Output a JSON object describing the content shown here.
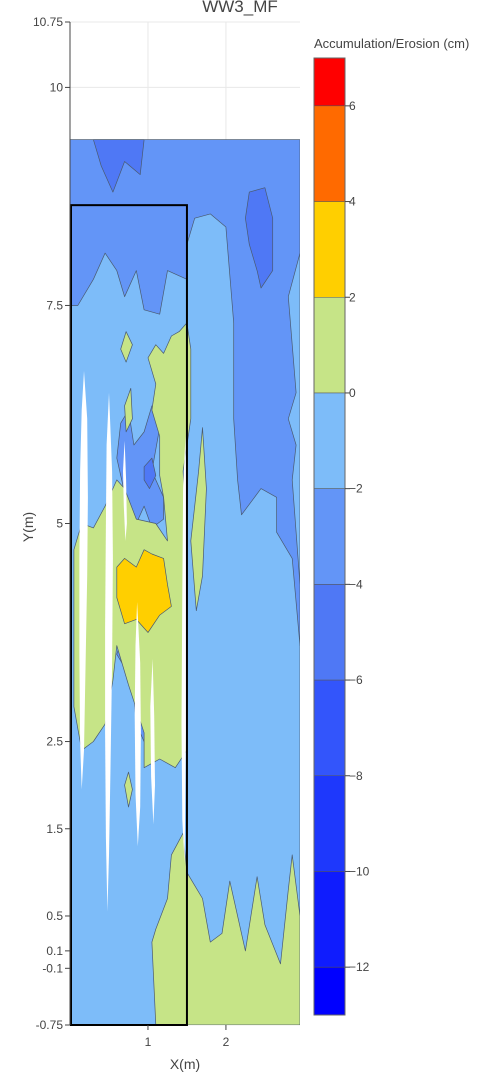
{
  "chart_data": {
    "type": "heatmap",
    "subtype": "filled-contour",
    "title": "WW3_MF",
    "xlabel": "X(m)",
    "ylabel": "Y(m)",
    "x_ticks": [
      {
        "value": 1,
        "label": "1"
      },
      {
        "value": 2,
        "label": "2"
      }
    ],
    "y_ticks": [
      {
        "value": 10.75,
        "label": "10.75"
      },
      {
        "value": 10,
        "label": "10"
      },
      {
        "value": 7.5,
        "label": "7.5"
      },
      {
        "value": 5,
        "label": "5"
      },
      {
        "value": 2.5,
        "label": "2.5"
      },
      {
        "value": 1.5,
        "label": "1.5"
      },
      {
        "value": 0.5,
        "label": "0.5"
      },
      {
        "value": 0.1,
        "label": "0.1"
      },
      {
        "value": -0.1,
        "label": "-0.1"
      },
      {
        "value": -0.75,
        "label": "-0.75"
      }
    ],
    "xlim": [
      0,
      2.95
    ],
    "ylim": [
      -0.75,
      10.75
    ],
    "data_extent": {
      "x": [
        0,
        2.95
      ],
      "y": [
        -0.75,
        9.4
      ]
    },
    "outline_box": {
      "x": [
        0,
        1.5
      ],
      "y": [
        -0.75,
        8.65
      ]
    },
    "colorbar": {
      "title": "Accumulation/Erosion (cm)",
      "range": [
        -13,
        7
      ],
      "ticks": [
        6,
        4,
        2,
        0,
        -2,
        -4,
        -6,
        -8,
        -10,
        -12
      ],
      "tick_labels": [
        "6",
        "4",
        "2",
        "0",
        "−2",
        "−4",
        "−6",
        "−8",
        "−10",
        "−12"
      ],
      "bands": [
        {
          "from": -13,
          "to": -12,
          "color": "#0000ff"
        },
        {
          "from": -12,
          "to": -10,
          "color": "#0f1cfe"
        },
        {
          "from": -10,
          "to": -8,
          "color": "#1e38fc"
        },
        {
          "from": -8,
          "to": -6,
          "color": "#3355fb"
        },
        {
          "from": -6,
          "to": -4,
          "color": "#4f78f5"
        },
        {
          "from": -4,
          "to": -2,
          "color": "#6395f7"
        },
        {
          "from": -2,
          "to": 0,
          "color": "#7dbcf9"
        },
        {
          "from": 0,
          "to": 2,
          "color": "#c6e487"
        },
        {
          "from": 2,
          "to": 4,
          "color": "#ffcf00"
        },
        {
          "from": 4,
          "to": 6,
          "color": "#ff6a00"
        },
        {
          "from": 6,
          "to": 7,
          "color": "#ff0000"
        }
      ]
    },
    "contour_regions": [
      {
        "level": "-2 to 0",
        "color": "#7dbcf9",
        "polygons": [
          [
            [
              0,
              -0.75
            ],
            [
              2.95,
              -0.75
            ],
            [
              2.95,
              9.4
            ],
            [
              0,
              9.4
            ]
          ]
        ]
      },
      {
        "level": "-4 to -2",
        "color": "#6395f7",
        "polygons": [
          [
            [
              0,
              9.4
            ],
            [
              2.95,
              9.4
            ],
            [
              2.95,
              8.1
            ],
            [
              2.8,
              7.6
            ],
            [
              2.9,
              6.5
            ],
            [
              2.8,
              6.2
            ],
            [
              2.9,
              5.9
            ],
            [
              2.85,
              5.5
            ],
            [
              2.9,
              4.9
            ],
            [
              2.95,
              4.3
            ],
            [
              2.95,
              3.6
            ],
            [
              2.85,
              4.6
            ],
            [
              2.65,
              4.9
            ],
            [
              2.65,
              5.3
            ],
            [
              2.45,
              5.4
            ],
            [
              2.2,
              5.1
            ],
            [
              2.15,
              5.5
            ],
            [
              2.1,
              6.2
            ],
            [
              2.1,
              7.3
            ],
            [
              2.0,
              8.4
            ],
            [
              1.8,
              8.55
            ],
            [
              1.6,
              8.5
            ],
            [
              1.5,
              8.2
            ],
            [
              1.5,
              7.8
            ],
            [
              1.25,
              7.9
            ],
            [
              1.15,
              7.4
            ],
            [
              0.95,
              7.45
            ],
            [
              0.85,
              7.9
            ],
            [
              0.7,
              7.6
            ],
            [
              0.6,
              7.9
            ],
            [
              0.45,
              8.1
            ],
            [
              0.3,
              7.8
            ],
            [
              0.1,
              7.5
            ],
            [
              0,
              7.5
            ]
          ],
          [
            [
              0.65,
              6.15
            ],
            [
              0.75,
              6.3
            ],
            [
              0.82,
              5.9
            ],
            [
              0.95,
              6.05
            ],
            [
              1.05,
              6.35
            ],
            [
              1.15,
              6.1
            ],
            [
              1.05,
              5.6
            ],
            [
              1.2,
              5.3
            ],
            [
              1.2,
              5.05
            ],
            [
              1.05,
              4.95
            ],
            [
              0.95,
              5.2
            ],
            [
              0.85,
              5.0
            ],
            [
              0.7,
              5.35
            ],
            [
              0.6,
              5.75
            ]
          ],
          [
            [
              0.6,
              3.5
            ],
            [
              0.8,
              3.2
            ],
            [
              0.85,
              2.7
            ],
            [
              1.0,
              2.4
            ],
            [
              1.05,
              2.8
            ],
            [
              1.1,
              3.4
            ],
            [
              1.2,
              3.5
            ],
            [
              1.3,
              3.15
            ],
            [
              1.35,
              2.6
            ],
            [
              1.45,
              2.55
            ],
            [
              1.5,
              3.0
            ],
            [
              1.4,
              3.4
            ],
            [
              1.3,
              3.9
            ],
            [
              1.1,
              3.95
            ],
            [
              0.95,
              3.75
            ],
            [
              0.85,
              4.05
            ],
            [
              0.7,
              3.8
            ]
          ]
        ]
      },
      {
        "level": "-6 to -4",
        "color": "#4f78f5",
        "polygons": [
          [
            [
              0.3,
              9.4
            ],
            [
              0.95,
              9.4
            ],
            [
              0.9,
              9.0
            ],
            [
              0.7,
              9.15
            ],
            [
              0.55,
              8.8
            ],
            [
              0.4,
              9.1
            ]
          ],
          [
            [
              2.3,
              8.8
            ],
            [
              2.5,
              8.85
            ],
            [
              2.6,
              8.5
            ],
            [
              2.6,
              7.9
            ],
            [
              2.45,
              7.7
            ],
            [
              2.4,
              7.9
            ],
            [
              2.3,
              8.2
            ],
            [
              2.25,
              8.5
            ]
          ],
          [
            [
              0.95,
              5.65
            ],
            [
              1.05,
              5.75
            ],
            [
              1.1,
              5.55
            ],
            [
              1.02,
              5.4
            ],
            [
              0.95,
              5.5
            ]
          ]
        ]
      },
      {
        "level": "0 to 2",
        "color": "#c6e487",
        "polygons": [
          [
            [
              1.4,
              7.2
            ],
            [
              1.5,
              7.3
            ],
            [
              1.55,
              7.0
            ],
            [
              1.55,
              6.2
            ],
            [
              1.45,
              5.6
            ],
            [
              1.5,
              4.8
            ],
            [
              1.45,
              4.0
            ],
            [
              1.5,
              3.2
            ],
            [
              1.5,
              2.4
            ],
            [
              1.35,
              2.2
            ],
            [
              1.15,
              2.3
            ],
            [
              0.95,
              2.2
            ],
            [
              0.95,
              2.6
            ],
            [
              0.75,
              3.15
            ],
            [
              0.6,
              3.6
            ],
            [
              0.55,
              3.2
            ],
            [
              0.45,
              2.7
            ],
            [
              0.3,
              2.5
            ],
            [
              0.15,
              2.4
            ],
            [
              0.05,
              2.9
            ],
            [
              0.05,
              3.8
            ],
            [
              0.05,
              4.7
            ],
            [
              0.15,
              5.0
            ],
            [
              0.3,
              4.95
            ],
            [
              0.45,
              5.2
            ],
            [
              0.6,
              5.5
            ],
            [
              0.7,
              5.4
            ],
            [
              0.85,
              5.05
            ],
            [
              1.1,
              5.0
            ],
            [
              1.25,
              4.8
            ],
            [
              1.2,
              5.3
            ],
            [
              1.15,
              5.55
            ],
            [
              1.15,
              6.0
            ],
            [
              1.05,
              6.3
            ],
            [
              1.1,
              6.6
            ],
            [
              1.0,
              6.9
            ],
            [
              1.1,
              7.05
            ],
            [
              1.2,
              6.95
            ],
            [
              1.3,
              7.15
            ]
          ],
          [
            [
              1.65,
              5.6
            ],
            [
              1.7,
              6.1
            ],
            [
              1.75,
              5.4
            ],
            [
              1.7,
              4.4
            ],
            [
              1.62,
              4.0
            ],
            [
              1.55,
              4.8
            ]
          ],
          [
            [
              1.5,
              0.1
            ],
            [
              1.5,
              -0.75
            ],
            [
              2.95,
              -0.75
            ],
            [
              2.95,
              0.5
            ],
            [
              2.85,
              1.2
            ],
            [
              2.8,
              0.8
            ],
            [
              2.7,
              -0.05
            ],
            [
              2.5,
              0.4
            ],
            [
              2.4,
              0.95
            ],
            [
              2.25,
              0.1
            ],
            [
              2.05,
              0.9
            ],
            [
              1.95,
              0.3
            ],
            [
              1.8,
              0.2
            ],
            [
              1.7,
              0.7
            ],
            [
              1.5,
              1.0
            ]
          ],
          [
            [
              1.1,
              -0.75
            ],
            [
              1.5,
              -0.75
            ],
            [
              1.5,
              1.0
            ],
            [
              1.45,
              1.45
            ],
            [
              1.3,
              1.2
            ],
            [
              1.25,
              0.7
            ],
            [
              1.1,
              0.35
            ],
            [
              1.05,
              0.2
            ]
          ],
          [
            [
              0.7,
              6.35
            ],
            [
              0.78,
              6.55
            ],
            [
              0.8,
              6.2
            ],
            [
              0.72,
              6.05
            ]
          ],
          [
            [
              0.65,
              7.0
            ],
            [
              0.72,
              7.2
            ],
            [
              0.8,
              7.05
            ],
            [
              0.72,
              6.85
            ]
          ],
          [
            [
              0.7,
              2.0
            ],
            [
              0.75,
              2.15
            ],
            [
              0.8,
              1.95
            ],
            [
              0.75,
              1.75
            ]
          ]
        ]
      },
      {
        "level": "2 to 4",
        "color": "#ffcf00",
        "polygons": [
          [
            [
              0.6,
              4.5
            ],
            [
              0.7,
              4.6
            ],
            [
              0.85,
              4.5
            ],
            [
              0.95,
              4.7
            ],
            [
              1.05,
              4.65
            ],
            [
              1.2,
              4.6
            ],
            [
              1.25,
              4.3
            ],
            [
              1.3,
              4.05
            ],
            [
              1.15,
              3.95
            ],
            [
              1.0,
              3.75
            ],
            [
              0.85,
              3.9
            ],
            [
              0.7,
              3.85
            ],
            [
              0.6,
              4.15
            ]
          ]
        ]
      }
    ],
    "white_gaps": [
      [
        [
          0.18,
          6.75
        ],
        [
          0.22,
          6.2
        ],
        [
          0.23,
          5.3
        ],
        [
          0.22,
          4.4
        ],
        [
          0.2,
          3.4
        ],
        [
          0.18,
          2.4
        ],
        [
          0.15,
          1.95
        ],
        [
          0.13,
          2.5
        ],
        [
          0.12,
          3.5
        ],
        [
          0.12,
          4.6
        ],
        [
          0.13,
          5.6
        ],
        [
          0.15,
          6.3
        ]
      ],
      [
        [
          0.5,
          6.5
        ],
        [
          0.54,
          5.6
        ],
        [
          0.55,
          4.6
        ],
        [
          0.54,
          3.4
        ],
        [
          0.52,
          2.2
        ],
        [
          0.5,
          1.2
        ],
        [
          0.48,
          0.55
        ],
        [
          0.46,
          1.4
        ],
        [
          0.45,
          2.6
        ],
        [
          0.45,
          3.8
        ],
        [
          0.46,
          5.0
        ],
        [
          0.47,
          5.9
        ]
      ],
      [
        [
          0.7,
          5.95
        ],
        [
          0.72,
          5.5
        ],
        [
          0.73,
          5.0
        ],
        [
          0.71,
          4.8
        ],
        [
          0.69,
          5.2
        ],
        [
          0.68,
          5.6
        ]
      ],
      [
        [
          0.86,
          4.1
        ],
        [
          0.9,
          3.4
        ],
        [
          0.91,
          2.6
        ],
        [
          0.9,
          1.75
        ],
        [
          0.87,
          1.3
        ],
        [
          0.84,
          1.9
        ],
        [
          0.83,
          2.8
        ],
        [
          0.84,
          3.6
        ]
      ],
      [
        [
          1.06,
          3.45
        ],
        [
          1.08,
          2.8
        ],
        [
          1.09,
          2.0
        ],
        [
          1.07,
          1.55
        ],
        [
          1.04,
          2.1
        ],
        [
          1.03,
          2.9
        ]
      ],
      [
        [
          1.48,
          6.0
        ],
        [
          1.5,
          5.2
        ],
        [
          1.5,
          3.5
        ],
        [
          1.48,
          2.0
        ],
        [
          1.47,
          1.1
        ],
        [
          1.44,
          1.6
        ],
        [
          1.43,
          2.7
        ],
        [
          1.44,
          4.2
        ],
        [
          1.45,
          5.4
        ]
      ]
    ]
  }
}
